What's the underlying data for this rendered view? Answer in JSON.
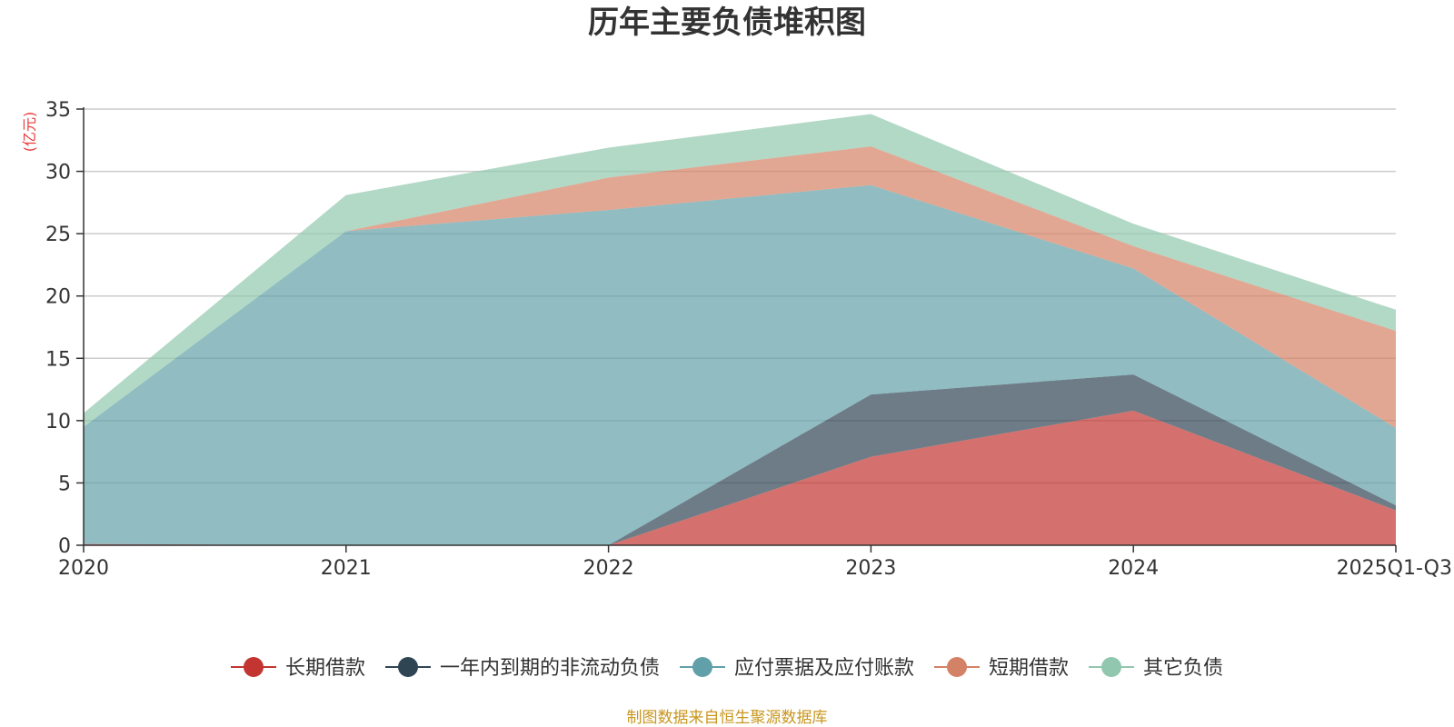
{
  "chart_data": {
    "type": "area",
    "stacked": true,
    "title": "历年主要负债堆积图",
    "unit": "(亿元)",
    "categories": [
      "2020",
      "2021",
      "2022",
      "2023",
      "2024",
      "2025Q1-Q3"
    ],
    "ylim": [
      0,
      35
    ],
    "yticks": [
      0,
      5,
      10,
      15,
      20,
      25,
      30,
      35
    ],
    "grid": true,
    "legend_position": "bottom",
    "series": [
      {
        "name": "长期借款",
        "color": "#c23531",
        "values": [
          0.1,
          0,
          0,
          7.1,
          10.8,
          2.8
        ]
      },
      {
        "name": "一年内到期的非流动负债",
        "color": "#2f4554",
        "values": [
          0,
          0,
          0,
          5.0,
          2.9,
          0.4
        ]
      },
      {
        "name": "应付票据及应付账款",
        "color": "#61a0a8",
        "values": [
          9.4,
          25.2,
          26.9,
          16.8,
          8.5,
          6.2
        ]
      },
      {
        "name": "短期借款",
        "color": "#d48265",
        "values": [
          0,
          0,
          2.6,
          3.1,
          1.8,
          7.8
        ]
      },
      {
        "name": "其它负债",
        "color": "#91c7ae",
        "values": [
          1.1,
          2.9,
          2.4,
          2.6,
          1.8,
          1.7
        ]
      }
    ],
    "source": "制图数据来自恒生聚源数据库"
  }
}
